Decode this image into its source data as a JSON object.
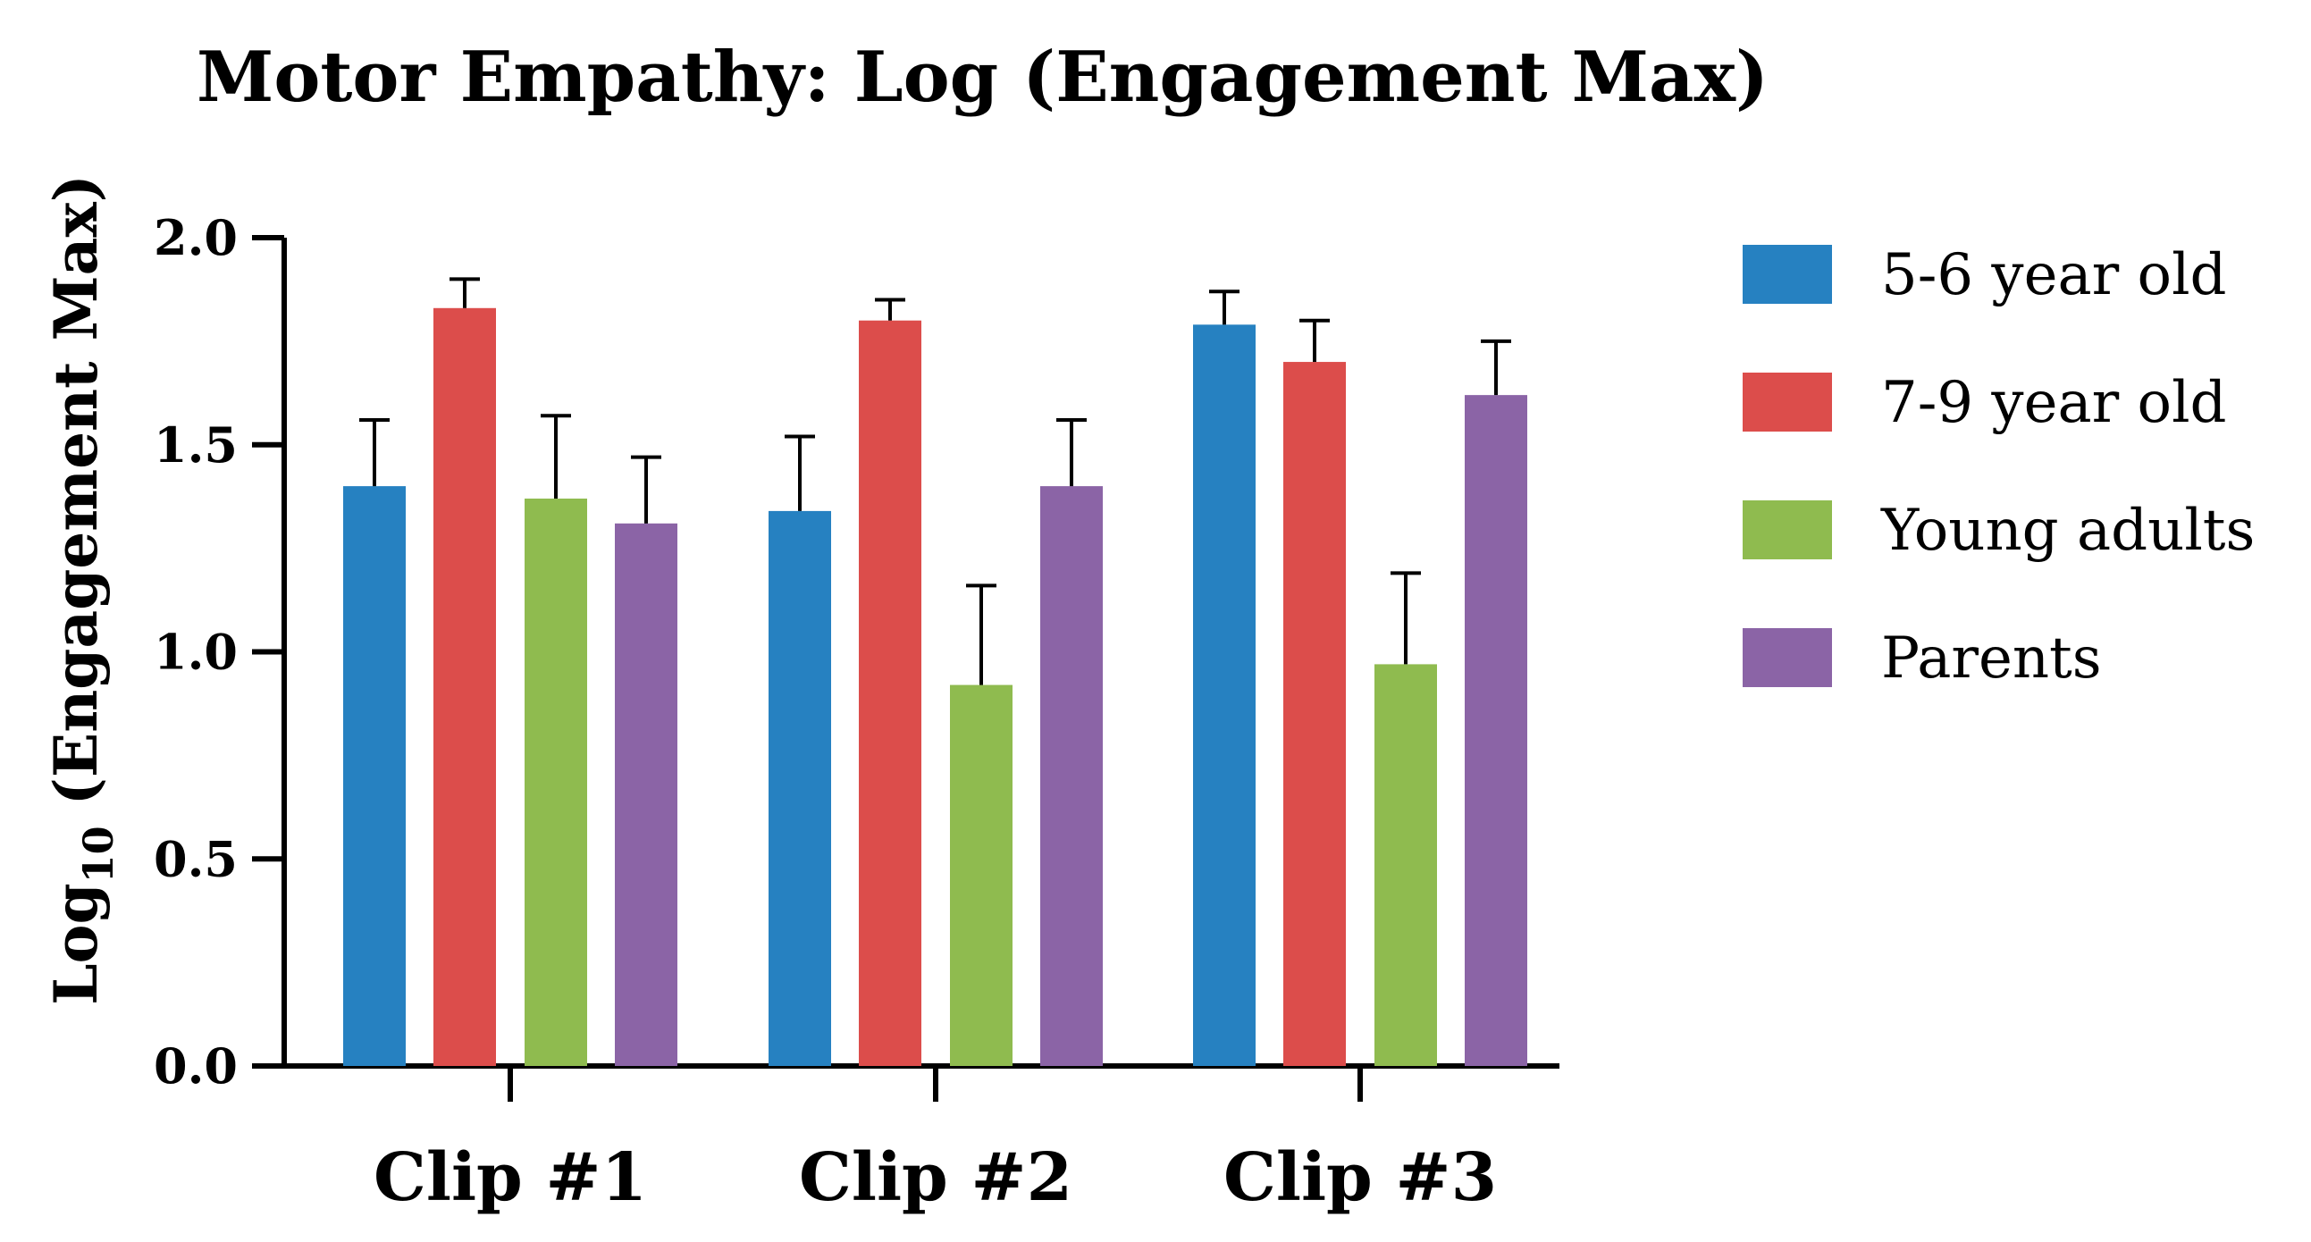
{
  "chart_data": {
    "type": "bar",
    "title": "Motor Empathy: Log (Engagement Max)",
    "ylabel_main": "Log",
    "ylabel_sub": "10",
    "ylabel_rest": " (Engagement Max)",
    "xlabel": "",
    "ylim": [
      0,
      2.0
    ],
    "yticks": [
      "0.0",
      "0.5",
      "1.0",
      "1.5",
      "2.0"
    ],
    "categories": [
      "Clip #1",
      "Clip #2",
      "Clip #3"
    ],
    "series": [
      {
        "name": "5-6 year old",
        "color": "#2681C1",
        "values": [
          1.4,
          1.34,
          1.79
        ],
        "errors": [
          0.16,
          0.18,
          0.08
        ]
      },
      {
        "name": "7-9 year old",
        "color": "#DC4D4B",
        "values": [
          1.83,
          1.8,
          1.7
        ],
        "errors": [
          0.07,
          0.05,
          0.1
        ]
      },
      {
        "name": "Young adults",
        "color": "#8FBB4F",
        "values": [
          1.37,
          0.92,
          0.97
        ],
        "errors": [
          0.2,
          0.24,
          0.22
        ]
      },
      {
        "name": "Parents",
        "color": "#8B64A6",
        "values": [
          1.31,
          1.4,
          1.62
        ],
        "errors": [
          0.16,
          0.16,
          0.13
        ]
      }
    ],
    "grid": false,
    "legend_position": "right"
  }
}
